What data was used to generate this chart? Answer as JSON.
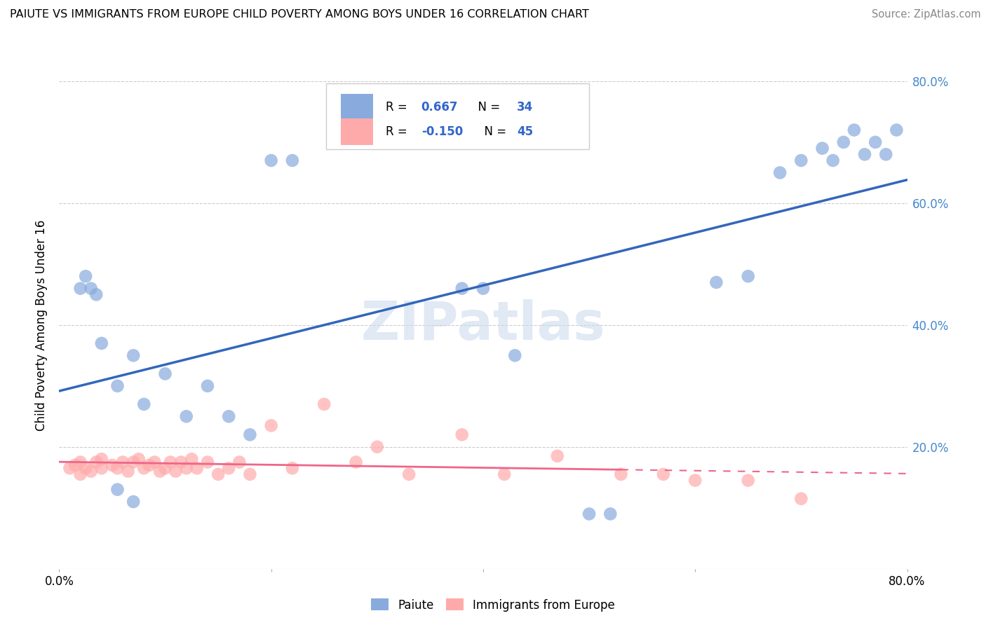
{
  "title": "PAIUTE VS IMMIGRANTS FROM EUROPE CHILD POVERTY AMONG BOYS UNDER 16 CORRELATION CHART",
  "source": "Source: ZipAtlas.com",
  "ylabel": "Child Poverty Among Boys Under 16",
  "watermark": "ZIPatlas",
  "xlim": [
    0.0,
    0.8
  ],
  "ylim": [
    0.0,
    0.8
  ],
  "color_paiute": "#88AADD",
  "color_europe": "#FFAAAA",
  "color_paiute_line": "#3366BB",
  "color_europe_line": "#EE6688",
  "background_color": "#FFFFFF",
  "paiute_x": [
    0.02,
    0.025,
    0.03,
    0.035,
    0.04,
    0.055,
    0.07,
    0.08,
    0.1,
    0.12,
    0.14,
    0.16,
    0.18,
    0.2,
    0.22,
    0.38,
    0.4,
    0.43,
    0.5,
    0.52,
    0.62,
    0.65,
    0.68,
    0.7,
    0.72,
    0.73,
    0.74,
    0.75,
    0.76,
    0.77,
    0.78,
    0.79,
    0.055,
    0.07
  ],
  "paiute_y": [
    0.46,
    0.48,
    0.46,
    0.45,
    0.37,
    0.3,
    0.35,
    0.27,
    0.32,
    0.25,
    0.3,
    0.25,
    0.22,
    0.67,
    0.67,
    0.46,
    0.46,
    0.35,
    0.09,
    0.09,
    0.47,
    0.48,
    0.65,
    0.67,
    0.69,
    0.67,
    0.7,
    0.72,
    0.68,
    0.7,
    0.68,
    0.72,
    0.13,
    0.11
  ],
  "europe_x": [
    0.01,
    0.015,
    0.02,
    0.02,
    0.025,
    0.03,
    0.035,
    0.04,
    0.04,
    0.05,
    0.055,
    0.06,
    0.065,
    0.07,
    0.075,
    0.08,
    0.085,
    0.09,
    0.095,
    0.1,
    0.105,
    0.11,
    0.115,
    0.12,
    0.125,
    0.13,
    0.14,
    0.15,
    0.16,
    0.17,
    0.18,
    0.2,
    0.22,
    0.25,
    0.28,
    0.3,
    0.33,
    0.38,
    0.42,
    0.47,
    0.53,
    0.57,
    0.6,
    0.65,
    0.7
  ],
  "europe_y": [
    0.165,
    0.17,
    0.175,
    0.155,
    0.165,
    0.16,
    0.175,
    0.165,
    0.18,
    0.17,
    0.165,
    0.175,
    0.16,
    0.175,
    0.18,
    0.165,
    0.17,
    0.175,
    0.16,
    0.165,
    0.175,
    0.16,
    0.175,
    0.165,
    0.18,
    0.165,
    0.175,
    0.155,
    0.165,
    0.175,
    0.155,
    0.235,
    0.165,
    0.27,
    0.175,
    0.2,
    0.155,
    0.22,
    0.155,
    0.185,
    0.155,
    0.155,
    0.145,
    0.145,
    0.115
  ]
}
